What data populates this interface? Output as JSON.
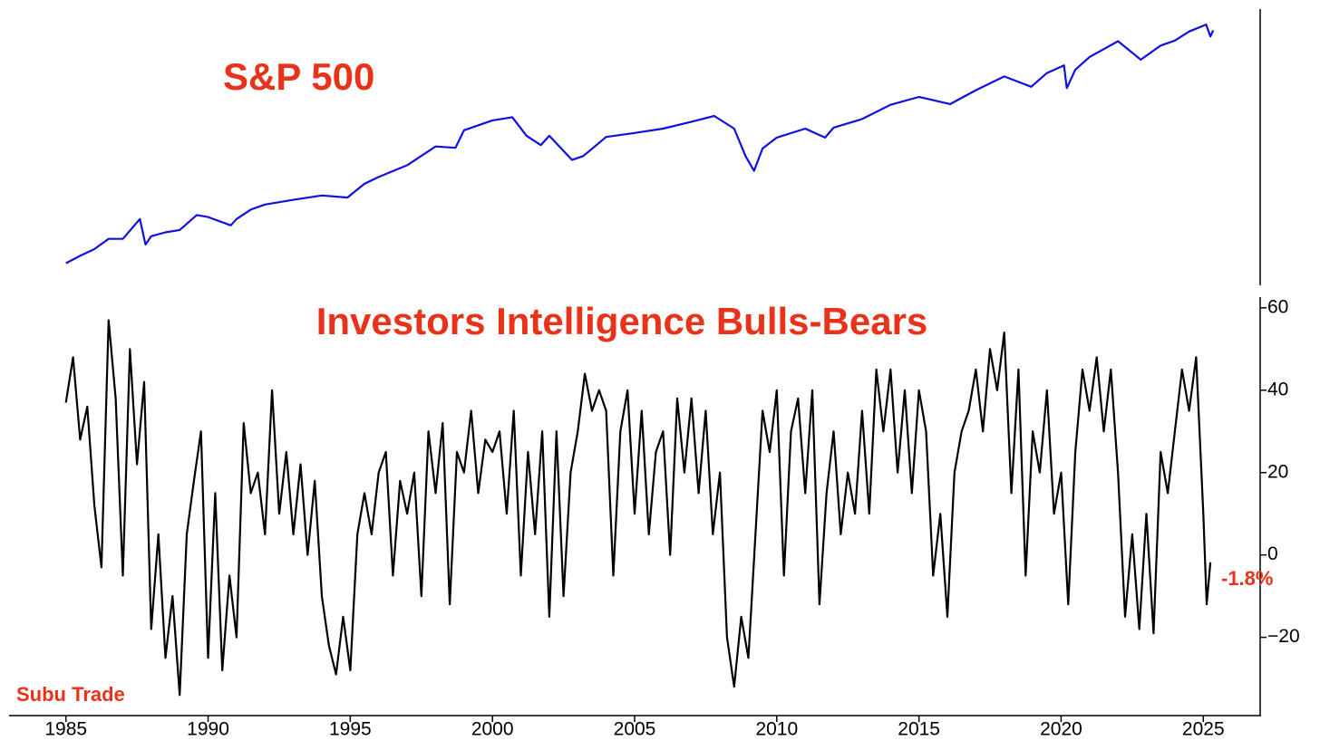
{
  "chart_data": [
    {
      "type": "line",
      "title": "S&P 500",
      "color": "#1010e0",
      "log_scale": true,
      "x": [
        1985,
        1985.5,
        1986,
        1986.5,
        1987,
        1987.6,
        1987.8,
        1988,
        1988.5,
        1989,
        1989.6,
        1990,
        1990.8,
        1991,
        1991.5,
        1992,
        1993,
        1994,
        1994.9,
        1995.5,
        1996,
        1997,
        1998,
        1998.7,
        1999,
        2000,
        2000.7,
        2001.2,
        2001.7,
        2002,
        2002.8,
        2003.2,
        2004,
        2005,
        2006,
        2007,
        2007.8,
        2008.5,
        2008.9,
        2009.2,
        2009.5,
        2010,
        2011,
        2011.7,
        2012,
        2013,
        2014,
        2015,
        2016.1,
        2017,
        2018,
        2018.95,
        2019.5,
        2020.1,
        2020.2,
        2020.5,
        2021,
        2022,
        2022.8,
        2023.5,
        2024,
        2024.5,
        2025.1,
        2025.25,
        2025.35
      ],
      "values": [
        170,
        190,
        210,
        245,
        245,
        330,
        225,
        255,
        270,
        280,
        350,
        340,
        300,
        330,
        380,
        410,
        440,
        470,
        455,
        560,
        620,
        740,
        980,
        960,
        1250,
        1450,
        1520,
        1150,
        1000,
        1150,
        800,
        850,
        1130,
        1200,
        1280,
        1420,
        1550,
        1280,
        850,
        680,
        950,
        1120,
        1280,
        1120,
        1300,
        1480,
        1830,
        2060,
        1850,
        2280,
        2800,
        2400,
        2950,
        3300,
        2350,
        3100,
        3750,
        4750,
        3600,
        4450,
        4800,
        5500,
        6100,
        5100,
        5600
      ],
      "xlim": [
        1983,
        2027
      ],
      "ylim": [
        122,
        7700
      ]
    },
    {
      "type": "line",
      "title": "Investors Intelligence Bulls-Bears",
      "color": "#000000",
      "x": [
        1985,
        1985.25,
        1985.5,
        1985.75,
        1986,
        1986.25,
        1986.5,
        1986.75,
        1987,
        1987.25,
        1987.5,
        1987.75,
        1988,
        1988.25,
        1988.5,
        1988.75,
        1989,
        1989.25,
        1989.5,
        1989.75,
        1990,
        1990.25,
        1990.5,
        1990.75,
        1991,
        1991.25,
        1991.5,
        1991.75,
        1992,
        1992.25,
        1992.5,
        1992.75,
        1993,
        1993.25,
        1993.5,
        1993.75,
        1994,
        1994.25,
        1994.5,
        1994.75,
        1995,
        1995.25,
        1995.5,
        1995.75,
        1996,
        1996.25,
        1996.5,
        1996.75,
        1997,
        1997.25,
        1997.5,
        1997.75,
        1998,
        1998.25,
        1998.5,
        1998.75,
        1999,
        1999.25,
        1999.5,
        1999.75,
        2000,
        2000.25,
        2000.5,
        2000.75,
        2001,
        2001.25,
        2001.5,
        2001.75,
        2002,
        2002.25,
        2002.5,
        2002.75,
        2003,
        2003.25,
        2003.5,
        2003.75,
        2004,
        2004.25,
        2004.5,
        2004.75,
        2005,
        2005.25,
        2005.5,
        2005.75,
        2006,
        2006.25,
        2006.5,
        2006.75,
        2007,
        2007.25,
        2007.5,
        2007.75,
        2008,
        2008.25,
        2008.5,
        2008.75,
        2009,
        2009.25,
        2009.5,
        2009.75,
        2010,
        2010.25,
        2010.5,
        2010.75,
        2011,
        2011.25,
        2011.5,
        2011.75,
        2012,
        2012.25,
        2012.5,
        2012.75,
        2013,
        2013.25,
        2013.5,
        2013.75,
        2014,
        2014.25,
        2014.5,
        2014.75,
        2015,
        2015.25,
        2015.5,
        2015.75,
        2016,
        2016.25,
        2016.5,
        2016.75,
        2017,
        2017.25,
        2017.5,
        2017.75,
        2018,
        2018.25,
        2018.5,
        2018.75,
        2019,
        2019.25,
        2019.5,
        2019.75,
        2020,
        2020.25,
        2020.5,
        2020.75,
        2021,
        2021.25,
        2021.5,
        2021.75,
        2022,
        2022.25,
        2022.5,
        2022.75,
        2023,
        2023.25,
        2023.5,
        2023.75,
        2024,
        2024.25,
        2024.5,
        2024.75,
        2025,
        2025.12,
        2025.25
      ],
      "values": [
        37,
        48,
        28,
        36,
        12,
        -3,
        57,
        38,
        -5,
        50,
        22,
        42,
        -18,
        5,
        -25,
        -10,
        -34,
        5,
        18,
        30,
        -25,
        15,
        -28,
        -5,
        -20,
        32,
        15,
        20,
        5,
        40,
        10,
        25,
        5,
        22,
        0,
        18,
        -10,
        -22,
        -29,
        -15,
        -28,
        5,
        15,
        5,
        20,
        25,
        -5,
        18,
        10,
        20,
        -10,
        30,
        15,
        32,
        -12,
        25,
        20,
        35,
        15,
        28,
        25,
        30,
        10,
        35,
        -5,
        25,
        5,
        30,
        -15,
        30,
        -10,
        20,
        30,
        44,
        35,
        40,
        35,
        -5,
        30,
        40,
        10,
        35,
        5,
        25,
        30,
        0,
        38,
        20,
        38,
        15,
        35,
        5,
        20,
        -20,
        -32,
        -15,
        -25,
        5,
        35,
        25,
        40,
        -5,
        30,
        38,
        15,
        40,
        -12,
        15,
        30,
        5,
        20,
        10,
        35,
        10,
        45,
        30,
        45,
        20,
        40,
        15,
        40,
        30,
        -5,
        10,
        -15,
        20,
        30,
        35,
        45,
        30,
        50,
        40,
        54,
        15,
        45,
        -5,
        30,
        20,
        40,
        10,
        20,
        -12,
        25,
        45,
        35,
        48,
        30,
        45,
        20,
        -15,
        5,
        -18,
        10,
        -19,
        25,
        15,
        30,
        45,
        35,
        48,
        10,
        -12,
        -1.8
      ],
      "xlim": [
        1983,
        2027
      ],
      "ylim": [
        -39,
        62.6
      ],
      "xticks": [
        1985,
        1990,
        1995,
        2000,
        2005,
        2010,
        2015,
        2020,
        2025
      ],
      "yticks": [
        {
          "value": -20,
          "label": "−20"
        },
        0,
        20,
        40,
        60
      ],
      "annotations": [
        "-1.8%",
        "Subu Trade"
      ]
    }
  ]
}
